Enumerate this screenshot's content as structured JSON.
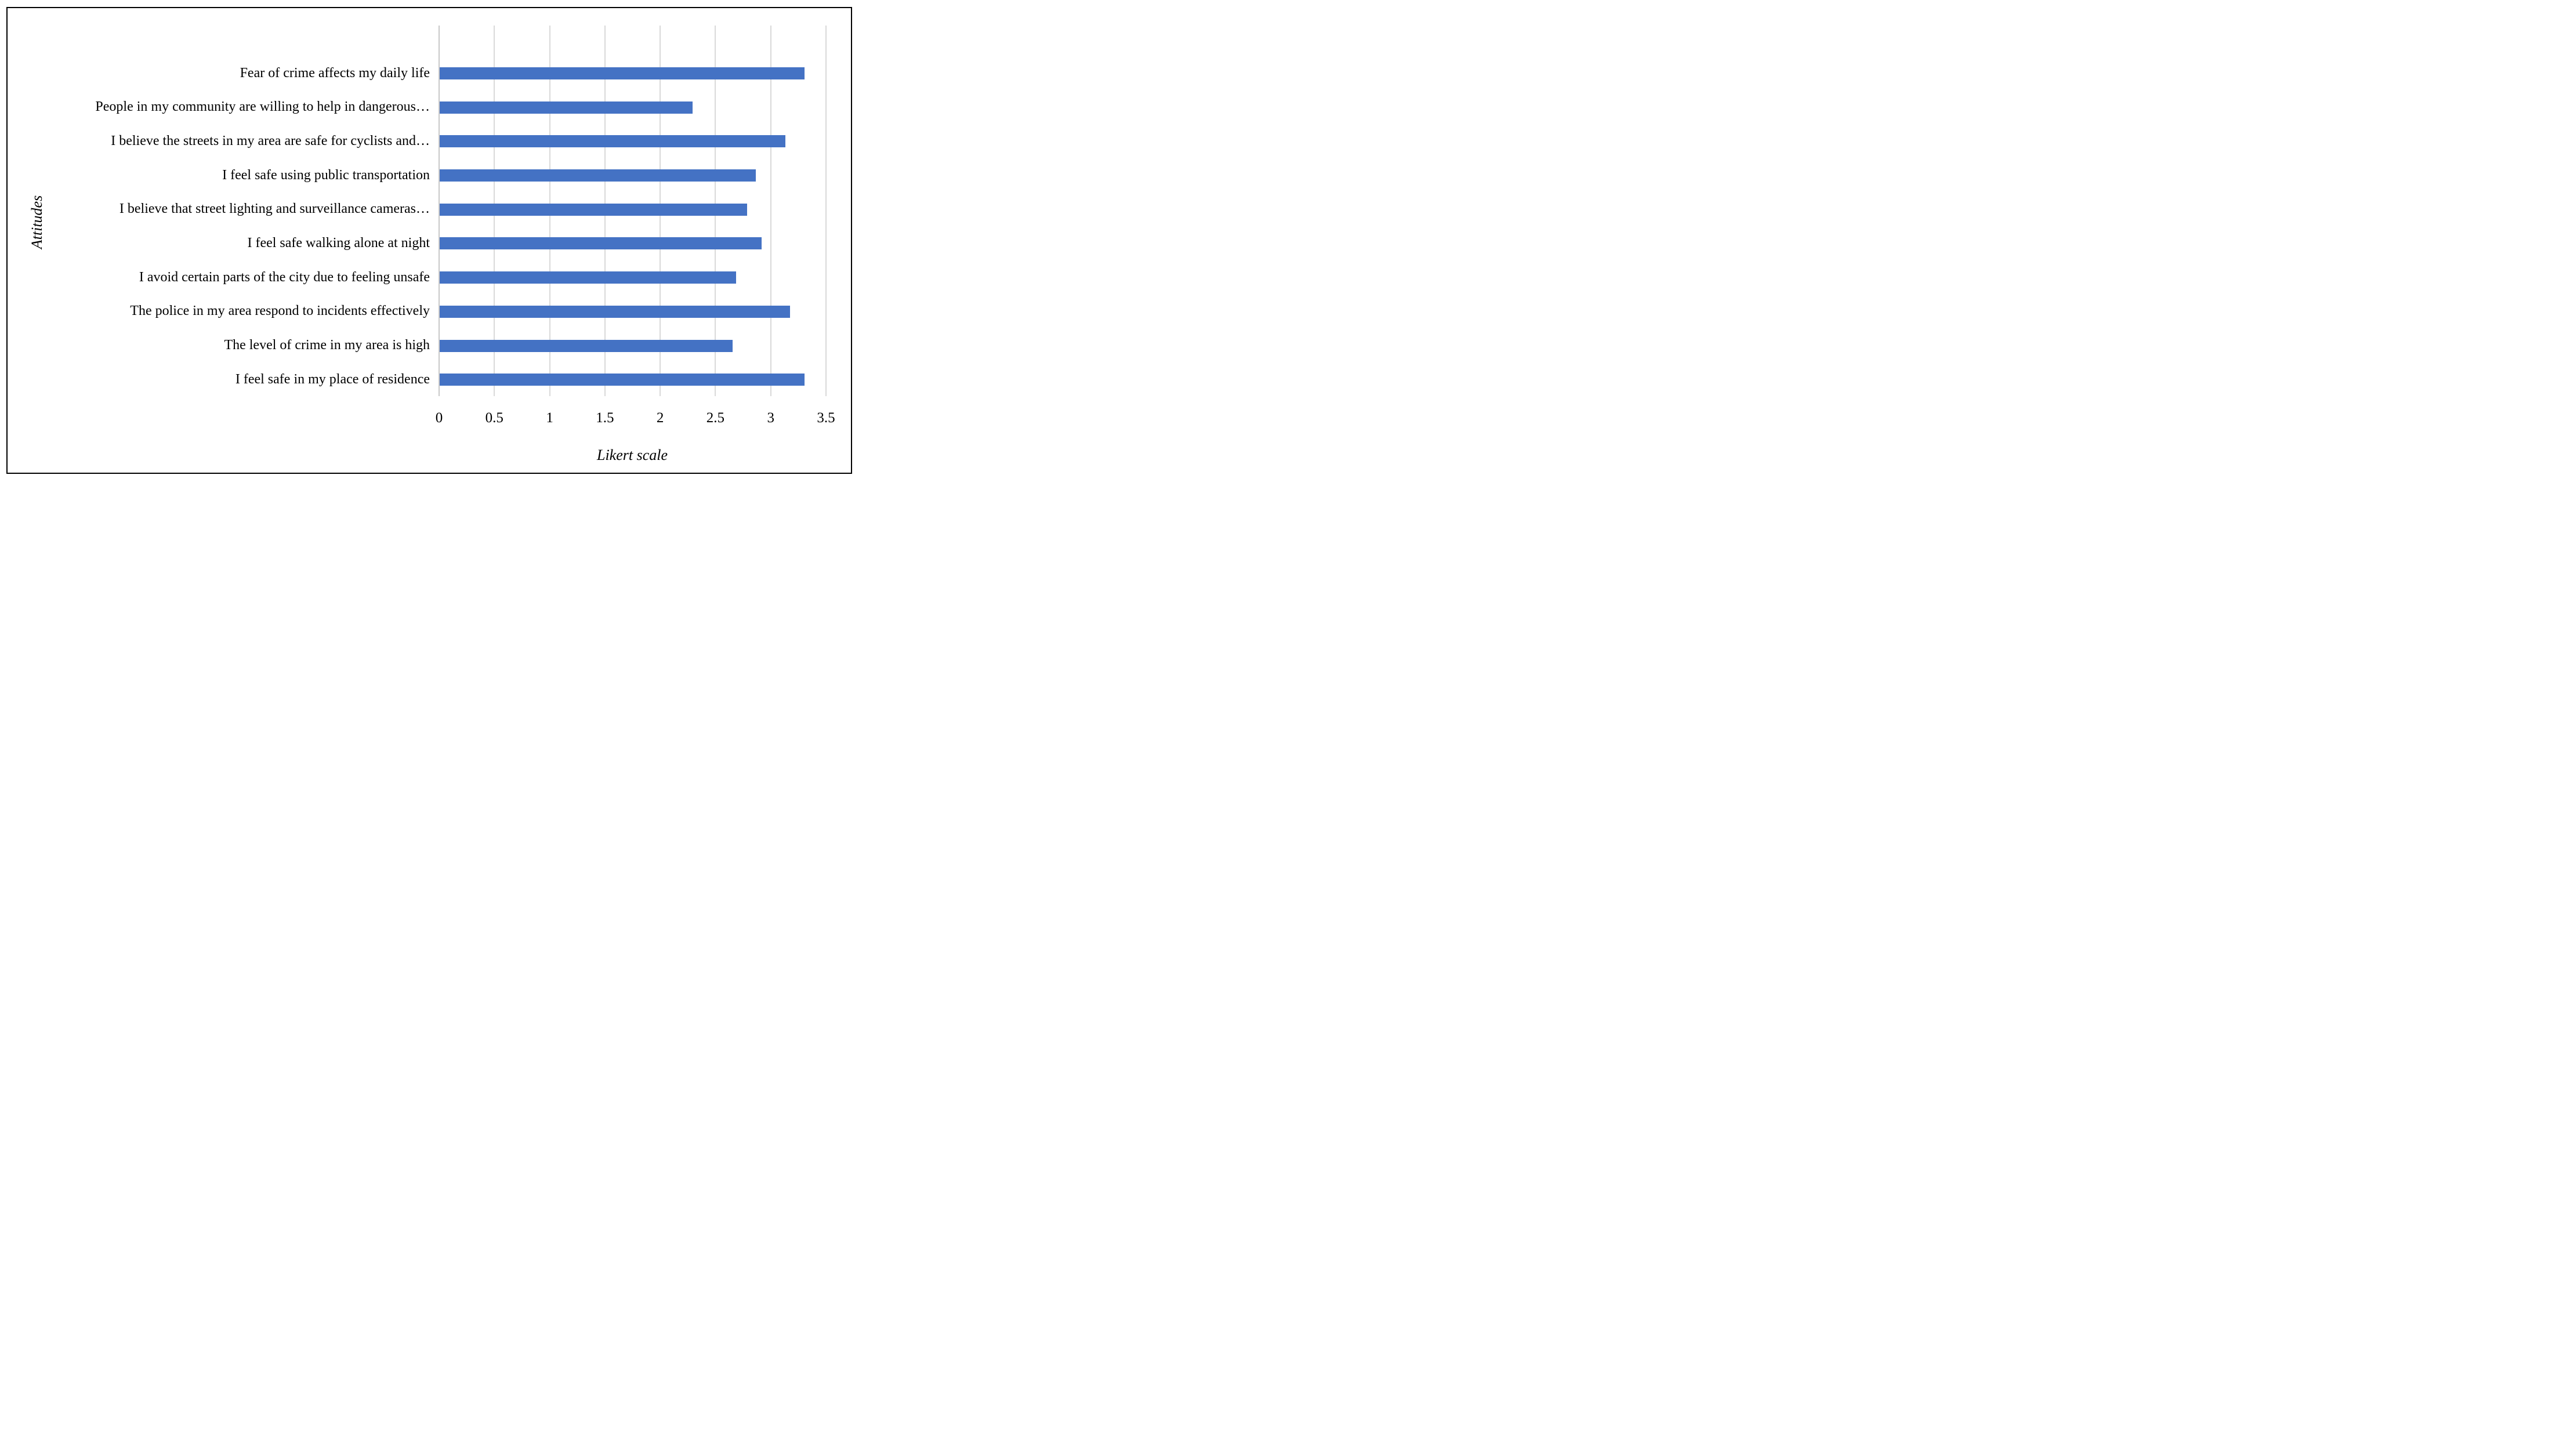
{
  "figure": {
    "background_color": "#ffffff",
    "frame_color": "#000000"
  },
  "chart_data": {
    "type": "bar",
    "orientation": "horizontal",
    "title": "",
    "xlabel": "Likert scale",
    "ylabel": "Attitudes",
    "categories": [
      "Fear of crime affects my daily life",
      "People in my community are willing to help in dangerous…",
      "I believe the streets in my area are safe for cyclists and…",
      "I feel safe using public transportation",
      "I believe that street lighting and surveillance cameras…",
      "I feel safe walking alone at night",
      "I avoid certain parts of the city due to feeling unsafe",
      "The police in my area respond to incidents effectively",
      "The level of crime in my area is high",
      "I feel safe in my place of residence"
    ],
    "values": [
      3.3,
      2.29,
      3.13,
      2.86,
      2.78,
      2.91,
      2.68,
      3.17,
      2.65,
      3.3
    ],
    "xlim": [
      0,
      3.5
    ],
    "x_ticks": [
      "0",
      "0.5",
      "1",
      "1.5",
      "2",
      "2.5",
      "3",
      "3.5"
    ],
    "x_tick_values": [
      0,
      0.5,
      1,
      1.5,
      2,
      2.5,
      3,
      3.5
    ],
    "grid": "vertical-gridlines-on",
    "legend": "none",
    "bar_color": "#4472C4",
    "gridline_color": "#D9D9D9",
    "axis_line_color": "#C8C8C8"
  }
}
